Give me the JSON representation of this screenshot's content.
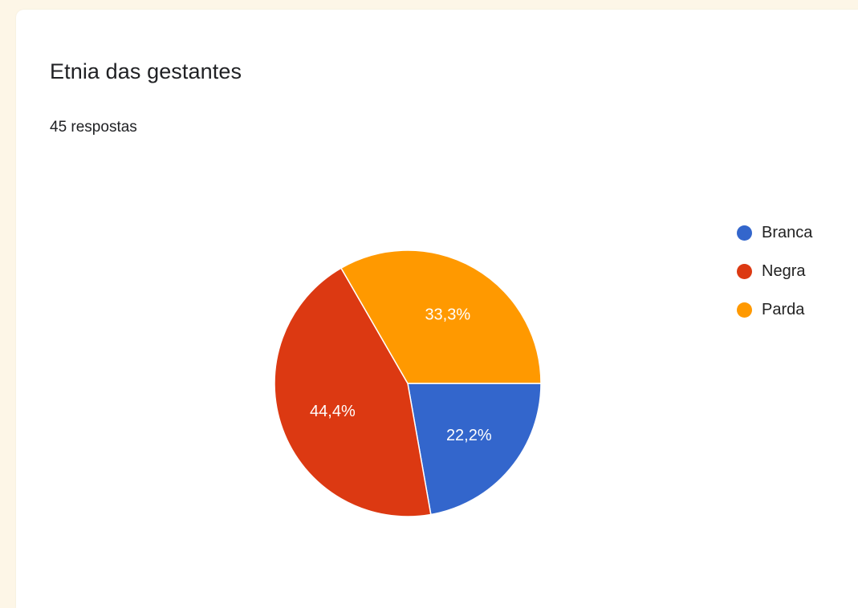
{
  "chart_data": {
    "type": "pie",
    "title": "Etnia das gestantes",
    "subtitle": "45 respostas",
    "legend_position": "right",
    "slices": [
      {
        "label": "Branca",
        "percent": 22.2,
        "display": "22,2%",
        "color": "#3366cc"
      },
      {
        "label": "Negra",
        "percent": 44.4,
        "display": "44,4%",
        "color": "#dc3912"
      },
      {
        "label": "Parda",
        "percent": 33.3,
        "display": "33,3%",
        "color": "#ff9900"
      }
    ]
  }
}
